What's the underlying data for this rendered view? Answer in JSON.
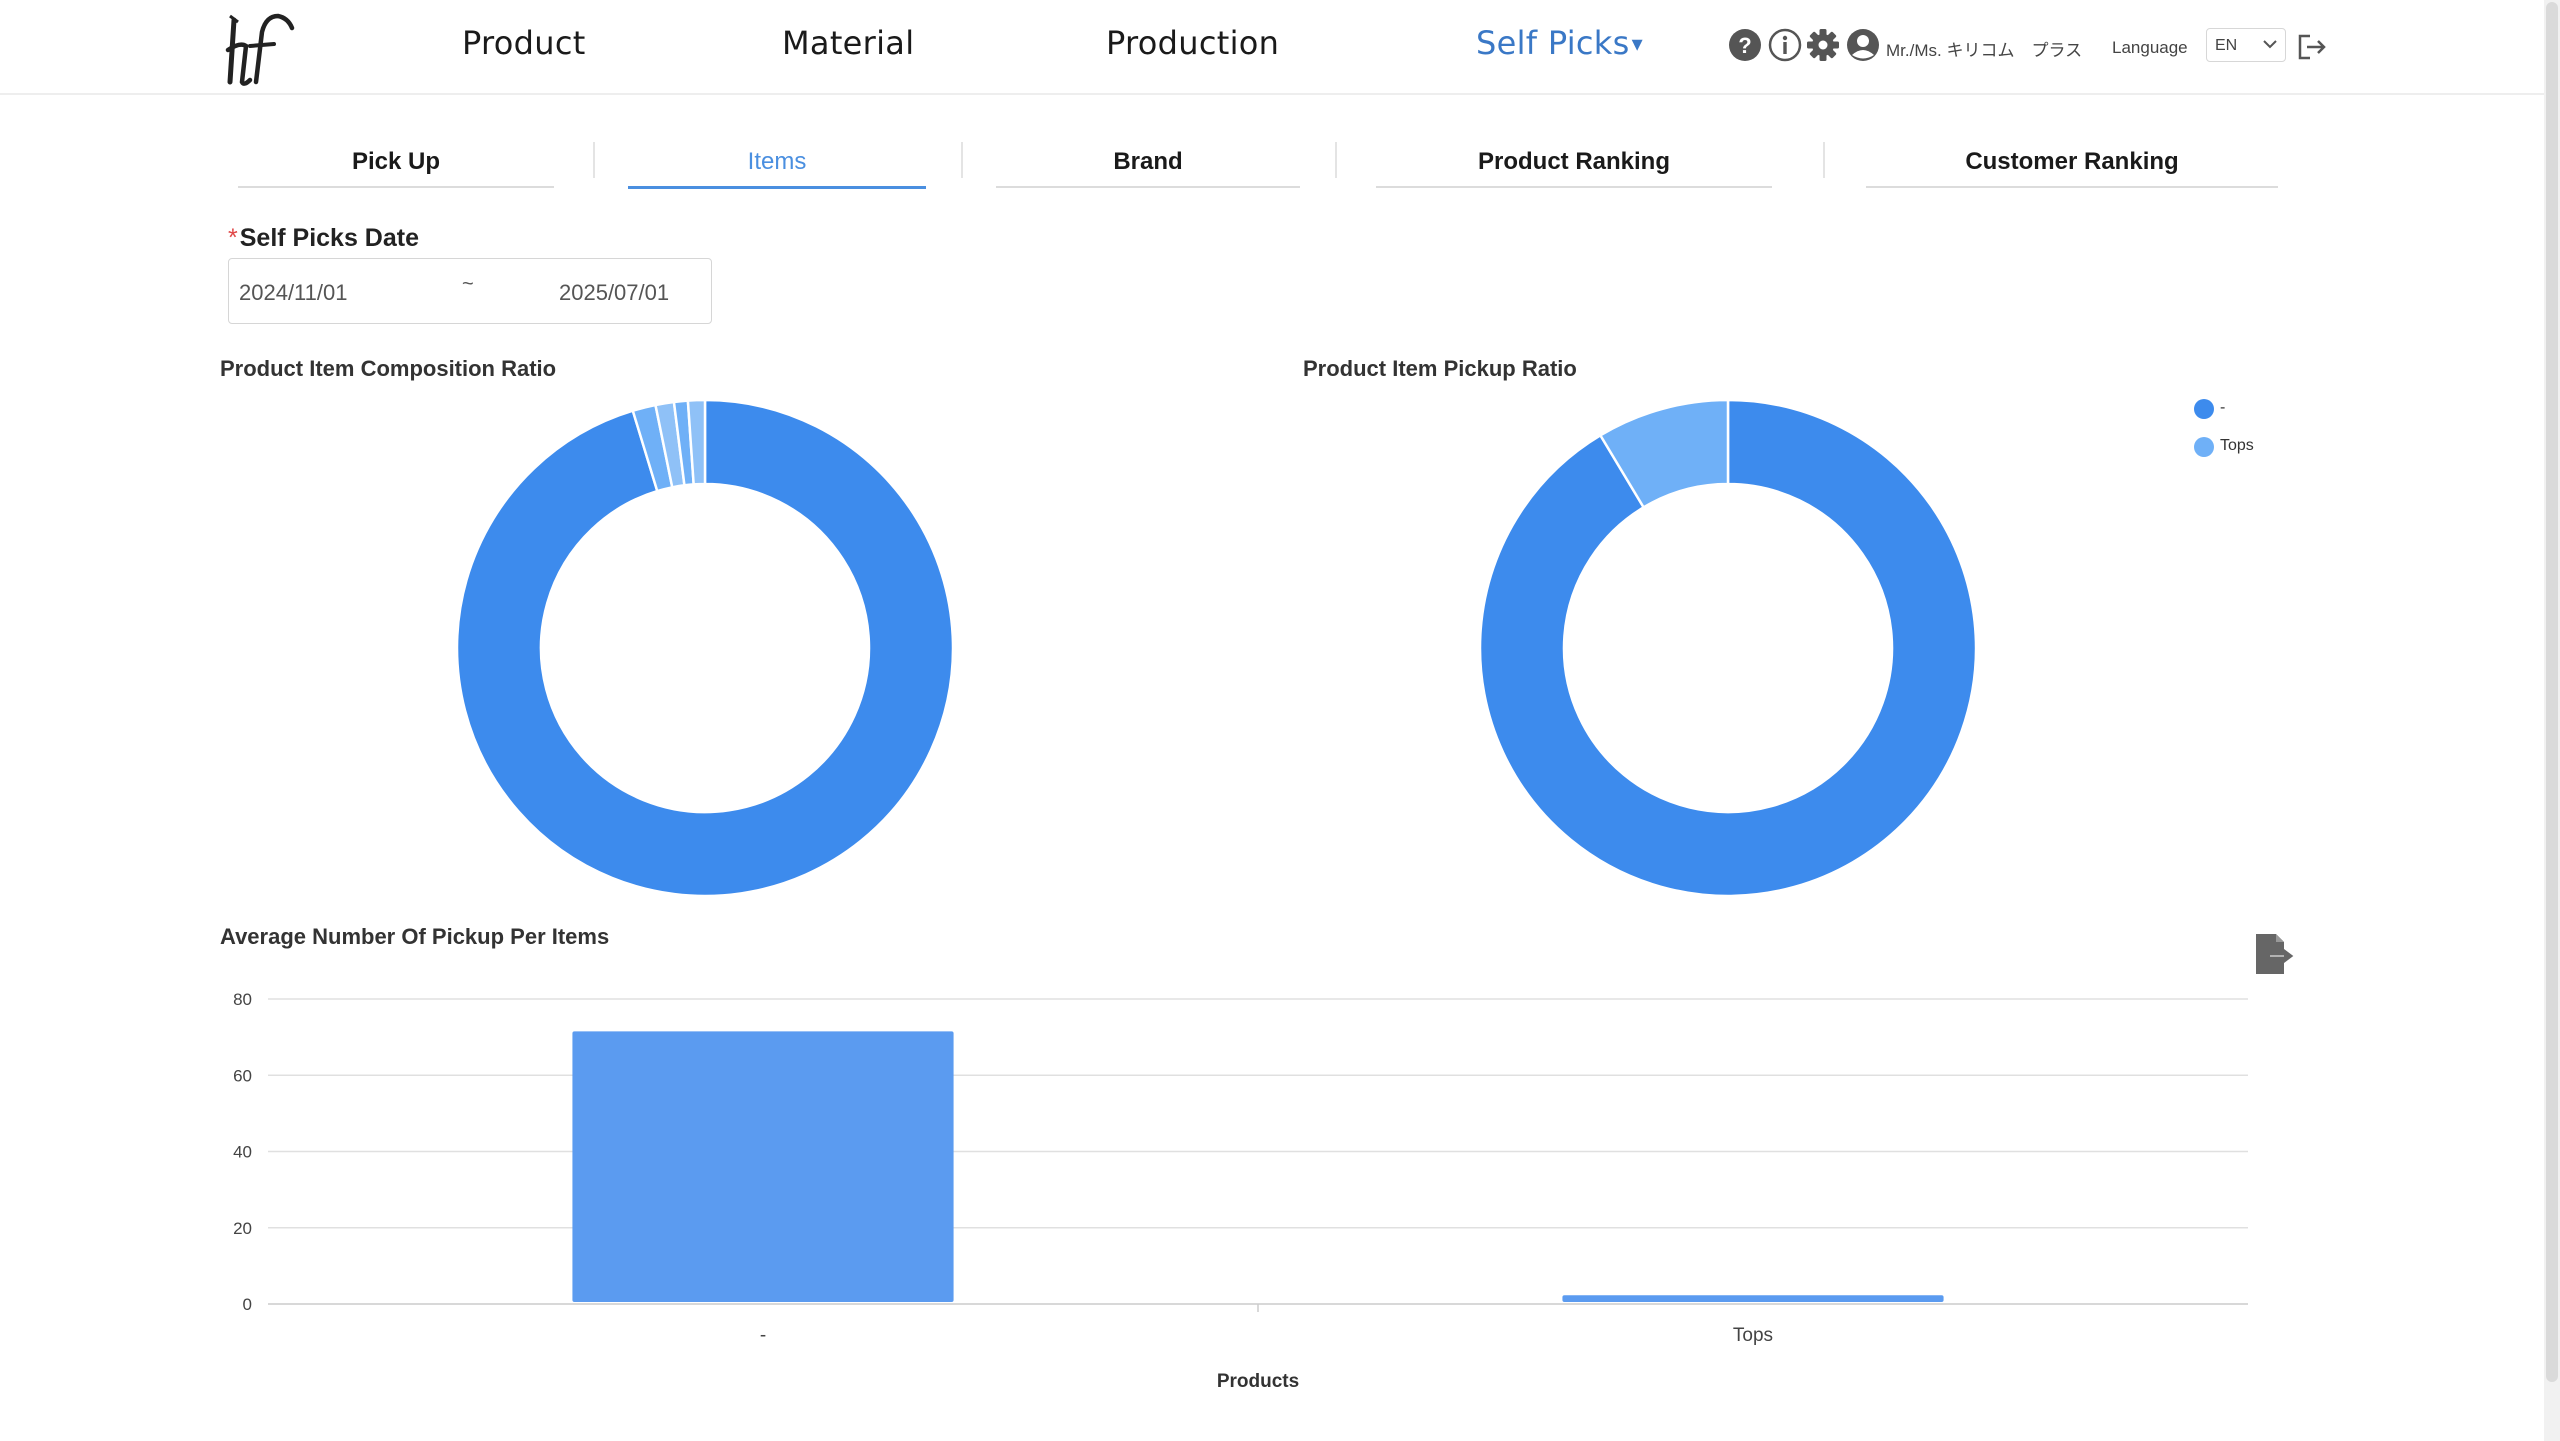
{
  "header": {
    "nav": [
      {
        "label": "Product"
      },
      {
        "label": "Material"
      },
      {
        "label": "Production"
      },
      {
        "label": "Self Picks",
        "caret": "▾"
      }
    ],
    "user_name": "Mr./Ms. キリコム　プラス",
    "language_label": "Language",
    "language_value": "EN",
    "icons": [
      "help-icon",
      "info-icon",
      "gear-icon",
      "user-icon",
      "chevron-down-icon",
      "logout-icon"
    ]
  },
  "tabs": [
    {
      "label": "Pick Up"
    },
    {
      "label": "Items"
    },
    {
      "label": "Brand"
    },
    {
      "label": "Product Ranking"
    },
    {
      "label": "Customer Ranking"
    }
  ],
  "filter": {
    "required_mark": "*",
    "label": "Self Picks Date",
    "start": "2024/11/01",
    "separator": "~",
    "end": "2025/07/01"
  },
  "colors": {
    "accent": "#4a8fe0",
    "series_main": "#3d8bed",
    "series_light": "#6fb0f7",
    "series_lighter": "#8fc1f7",
    "bar": "#5b9bf0"
  },
  "chart_data": [
    {
      "type": "pie",
      "donut": true,
      "title": "Product Item Composition Ratio",
      "values": [
        95.3,
        1.5,
        1.2,
        0.9,
        1.1
      ]
    },
    {
      "type": "pie",
      "donut": true,
      "title": "Product Item Pickup Ratio",
      "categories": [
        "-",
        "Tops"
      ],
      "values": [
        91.4,
        8.6
      ],
      "legend": [
        "-",
        "Tops"
      ],
      "legend_position": "top-right"
    },
    {
      "type": "bar",
      "title": "Average Number Of Pickup Per Items",
      "categories": [
        "-",
        "Tops"
      ],
      "values": [
        71.5,
        2.3
      ],
      "xlabel": "Products",
      "ylabel": "",
      "ylim": [
        0,
        80
      ],
      "yticks": [
        "0",
        "20",
        "40",
        "60",
        "80"
      ],
      "grid": true
    }
  ],
  "export_icon": "export-file-icon"
}
